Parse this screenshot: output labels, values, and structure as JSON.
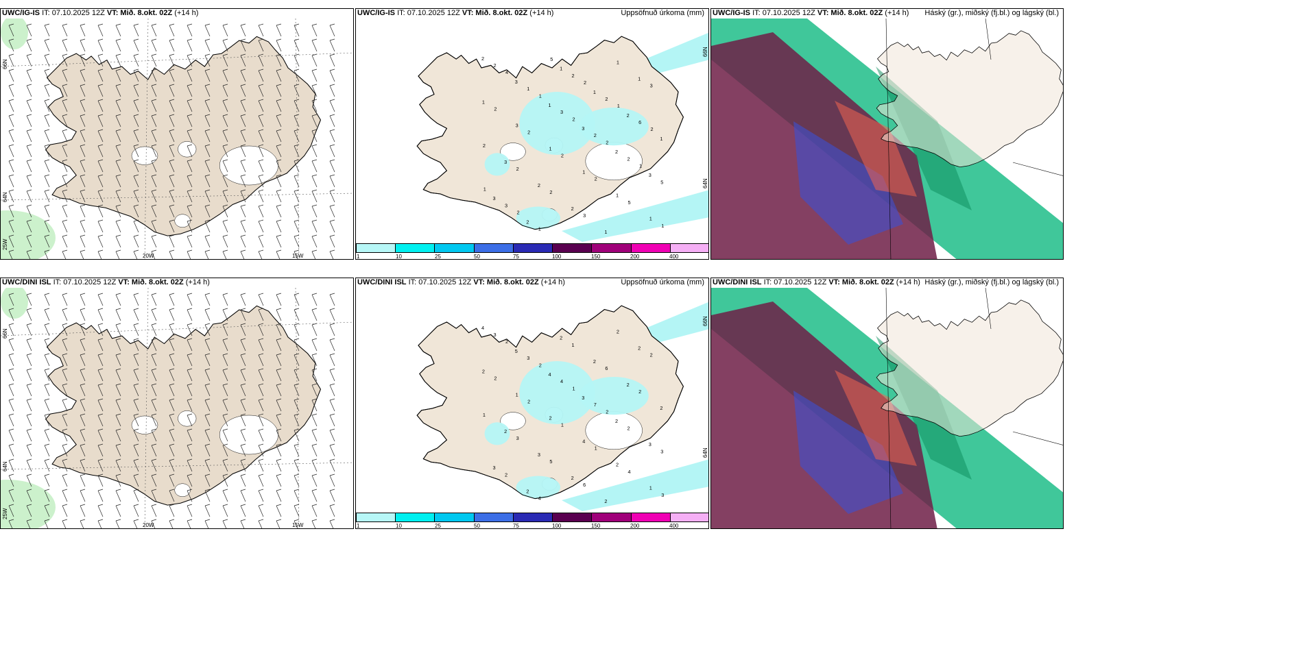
{
  "rows": [
    {
      "model": "UWC/IG-IS",
      "init": "IT: 07.10.2025 12Z",
      "valid": "VT: Mið. 8.okt. 02Z",
      "lead": "(+14 h)",
      "precip_nums": [
        "2",
        "3",
        "1",
        "3",
        "2",
        "3",
        "3",
        "2",
        "1",
        "1",
        "2",
        "1",
        "3",
        "2",
        "2",
        "1",
        "1",
        "1",
        "3",
        "1",
        "1",
        "1",
        "1",
        "2",
        "1",
        "3",
        "2",
        "2",
        "5",
        "3",
        "1",
        "2",
        "2",
        "6",
        "2",
        "2",
        "2",
        "3",
        "1",
        "3",
        "2",
        "2",
        "2",
        "2",
        "5",
        "1",
        "4",
        "1",
        "2",
        "2",
        "1",
        "1",
        "2",
        "5",
        "2",
        "1",
        "2"
      ]
    },
    {
      "model": "UWC/DINI ISL",
      "init": "IT: 07.10.2025 12Z",
      "valid": "VT: Mið. 8.okt. 02Z",
      "lead": "(+14 h)",
      "precip_nums": [
        "4",
        "5",
        "4",
        "3",
        "2",
        "3",
        "3",
        "2",
        "2",
        "2",
        "2",
        "2",
        "2",
        "3",
        "2",
        "2",
        "2",
        "2",
        "1",
        "2",
        "4",
        "2",
        "1",
        "3",
        "3",
        "4",
        "7",
        "2",
        "3",
        "2",
        "4",
        "1",
        "6",
        "2",
        "1",
        "3",
        "5",
        "6",
        "2",
        "2",
        "2",
        "2",
        "1",
        "1",
        "4",
        "3",
        "2",
        "2",
        "1",
        "2"
      ]
    }
  ],
  "precip_title": "Uppsöfnuð úrkoma (mm)",
  "cloud_title": "Háský (gr.), miðský (fj.bl.) og lágský (bl.)",
  "axis": {
    "lat_66": "66N",
    "lat_64": "64N",
    "lon_25": "25W",
    "lon_20": "20W",
    "lon_15": "15W"
  },
  "legend": [
    {
      "label": "1",
      "color": "#b7f7f7"
    },
    {
      "label": "10",
      "color": "#00f0f0"
    },
    {
      "label": "25",
      "color": "#00c8f0"
    },
    {
      "label": "50",
      "color": "#3c6ee6"
    },
    {
      "label": "75",
      "color": "#2a2ab4"
    },
    {
      "label": "100",
      "color": "#5a0050"
    },
    {
      "label": "150",
      "color": "#a0007a"
    },
    {
      "label": "200",
      "color": "#f000b4"
    },
    {
      "label": "400",
      "color": "#f5aff5"
    }
  ],
  "colors": {
    "land": "#f0e6d8",
    "land_wind": "#e8dccc",
    "precip_light": "#b4f5f5",
    "cloud_green": "#00b478",
    "cloud_dark": "#6e1e46",
    "cloud_blue": "#3c50d2"
  }
}
